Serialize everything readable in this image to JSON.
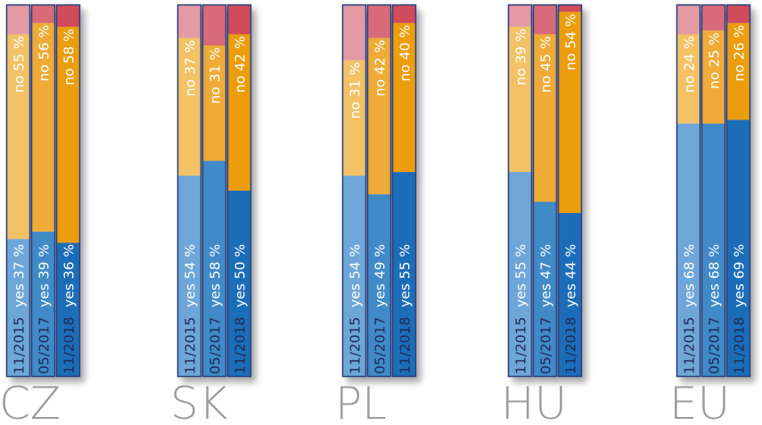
{
  "chart_data": {
    "type": "bar",
    "stacked": true,
    "orientation": "vertical",
    "categories": [
      "CZ",
      "SK",
      "PL",
      "HU",
      "EU"
    ],
    "periods": [
      "11/2015",
      "05/2017",
      "11/2018"
    ],
    "groups": [
      {
        "country": "CZ",
        "bars": [
          {
            "period": "11/2015",
            "yes": 37,
            "no": 55
          },
          {
            "period": "05/2017",
            "yes": 39,
            "no": 56
          },
          {
            "period": "11/2018",
            "yes": 36,
            "no": 58
          }
        ]
      },
      {
        "country": "SK",
        "bars": [
          {
            "period": "11/2015",
            "yes": 54,
            "no": 37
          },
          {
            "period": "05/2017",
            "yes": 58,
            "no": 31
          },
          {
            "period": "11/2018",
            "yes": 50,
            "no": 42
          }
        ]
      },
      {
        "country": "PL",
        "bars": [
          {
            "period": "11/2015",
            "yes": 54,
            "no": 31
          },
          {
            "period": "05/2017",
            "yes": 49,
            "no": 42
          },
          {
            "period": "11/2018",
            "yes": 55,
            "no": 40
          }
        ]
      },
      {
        "country": "HU",
        "bars": [
          {
            "period": "11/2015",
            "yes": 55,
            "no": 39
          },
          {
            "period": "05/2017",
            "yes": 47,
            "no": 45
          },
          {
            "period": "11/2018",
            "yes": 44,
            "no": 54
          }
        ]
      },
      {
        "country": "EU",
        "bars": [
          {
            "period": "11/2015",
            "yes": 68,
            "no": 24
          },
          {
            "period": "05/2017",
            "yes": 68,
            "no": 25
          },
          {
            "period": "11/2018",
            "yes": 69,
            "no": 26
          }
        ]
      }
    ],
    "ylim": [
      0,
      100
    ],
    "label_prefix": {
      "yes": "yes",
      "no": "no"
    },
    "unit": "%",
    "colors": {
      "yes": [
        "#6ea6d8",
        "#3f8ac8",
        "#1b6db8"
      ],
      "no": [
        "#f3c266",
        "#eeab38",
        "#eb9d0b"
      ],
      "other": [
        "#e39aa4",
        "#d96b79",
        "#d04b5c"
      ]
    },
    "grid": false,
    "legend": "none"
  }
}
